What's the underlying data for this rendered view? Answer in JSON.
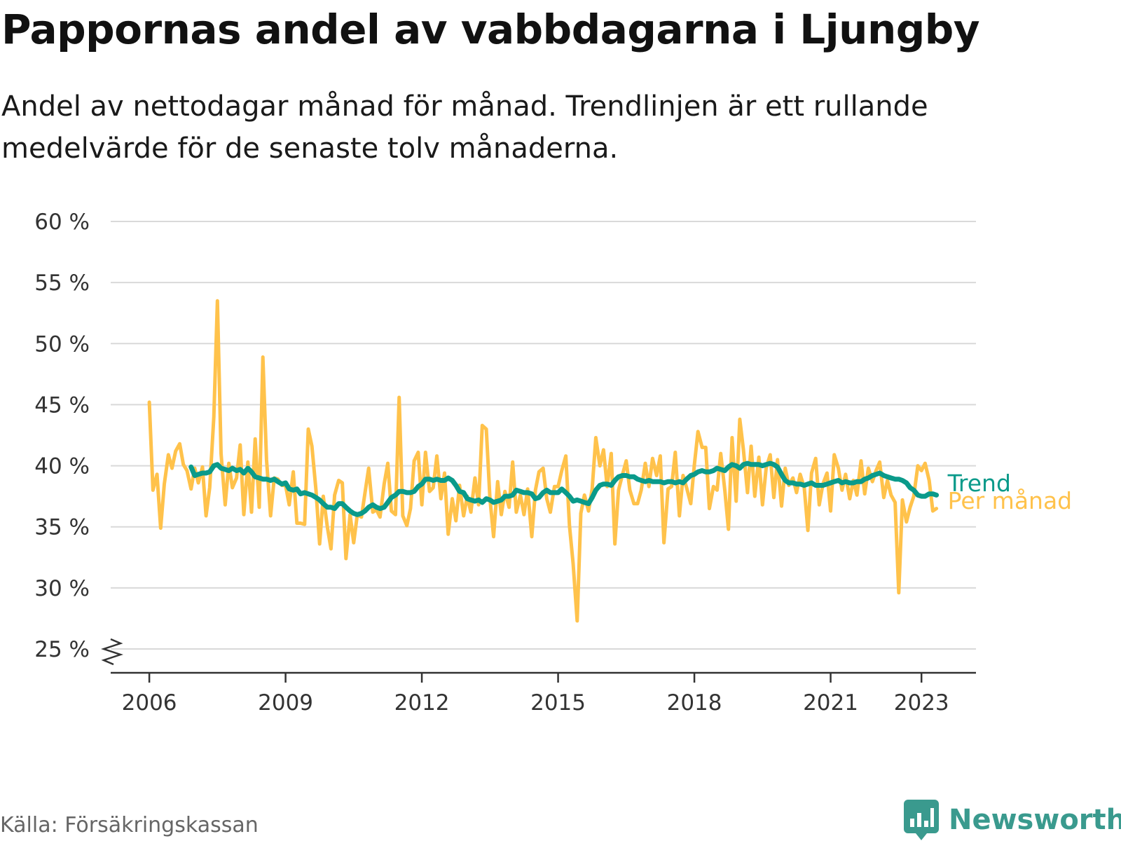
{
  "title": "Pappornas andel av vabbdagarna i Ljungby",
  "subtitle": "Andel av nettodagar månad för månad. Trendlinjen är ett rullande medelvärde för de senaste tolv månaderna.",
  "source": "Källa: Försäkringskassan",
  "brand": {
    "name": "Newsworthy",
    "icon": "newsworthy-logo-icon",
    "color": "#3a9a8e"
  },
  "chart_data": {
    "type": "line",
    "title": "Pappornas andel av vabbdagarna i Ljungby",
    "subtitle": "Andel av nettodagar månad för månad. Trendlinjen är ett rullande medelvärde för de senaste tolv månaderna.",
    "xlabel": "",
    "ylabel": "",
    "ylim": [
      25,
      60
    ],
    "xlim": [
      2005.15,
      2024.2
    ],
    "y_axis_break": true,
    "grid": true,
    "legend": "inline-right",
    "y_ticks": [
      {
        "value": 25,
        "label": "25 %"
      },
      {
        "value": 30,
        "label": "30 %"
      },
      {
        "value": 35,
        "label": "35 %"
      },
      {
        "value": 40,
        "label": "40 %"
      },
      {
        "value": 45,
        "label": "45 %"
      },
      {
        "value": 50,
        "label": "50 %"
      },
      {
        "value": 55,
        "label": "55 %"
      },
      {
        "value": 60,
        "label": "60 %"
      }
    ],
    "x_ticks": [
      {
        "value": 2006,
        "label": "2006"
      },
      {
        "value": 2009,
        "label": "2009"
      },
      {
        "value": 2012,
        "label": "2012"
      },
      {
        "value": 2015,
        "label": "2015"
      },
      {
        "value": 2018,
        "label": "2018"
      },
      {
        "value": 2021,
        "label": "2021"
      },
      {
        "value": 2023,
        "label": "2023"
      }
    ],
    "series": [
      {
        "name": "Per månad",
        "color": "#ffc24b",
        "x": [
          2006.0,
          2006.08,
          2006.17,
          2006.25,
          2006.33,
          2006.42,
          2006.5,
          2006.58,
          2006.67,
          2006.75,
          2006.83,
          2006.92,
          2007.0,
          2007.08,
          2007.17,
          2007.25,
          2007.33,
          2007.42,
          2007.5,
          2007.58,
          2007.67,
          2007.75,
          2007.83,
          2007.92,
          2008.0,
          2008.08,
          2008.17,
          2008.25,
          2008.33,
          2008.42,
          2008.5,
          2008.58,
          2008.67,
          2008.75,
          2008.83,
          2008.92,
          2009.0,
          2009.08,
          2009.17,
          2009.25,
          2009.33,
          2009.42,
          2009.5,
          2009.58,
          2009.67,
          2009.75,
          2009.83,
          2009.92,
          2010.0,
          2010.08,
          2010.17,
          2010.25,
          2010.33,
          2010.42,
          2010.5,
          2010.58,
          2010.67,
          2010.75,
          2010.83,
          2010.92,
          2011.0,
          2011.08,
          2011.17,
          2011.25,
          2011.33,
          2011.42,
          2011.5,
          2011.58,
          2011.67,
          2011.75,
          2011.83,
          2011.92,
          2012.0,
          2012.08,
          2012.17,
          2012.25,
          2012.33,
          2012.42,
          2012.5,
          2012.58,
          2012.67,
          2012.75,
          2012.83,
          2012.92,
          2013.0,
          2013.08,
          2013.17,
          2013.25,
          2013.33,
          2013.42,
          2013.5,
          2013.58,
          2013.67,
          2013.75,
          2013.83,
          2013.92,
          2014.0,
          2014.08,
          2014.17,
          2014.25,
          2014.33,
          2014.42,
          2014.5,
          2014.58,
          2014.67,
          2014.75,
          2014.83,
          2014.92,
          2015.0,
          2015.08,
          2015.17,
          2015.25,
          2015.33,
          2015.42,
          2015.5,
          2015.58,
          2015.67,
          2015.75,
          2015.83,
          2015.92,
          2016.0,
          2016.08,
          2016.17,
          2016.25,
          2016.33,
          2016.42,
          2016.5,
          2016.58,
          2016.67,
          2016.75,
          2016.83,
          2016.92,
          2017.0,
          2017.08,
          2017.17,
          2017.25,
          2017.33,
          2017.42,
          2017.5,
          2017.58,
          2017.67,
          2017.75,
          2017.83,
          2017.92,
          2018.0,
          2018.08,
          2018.17,
          2018.25,
          2018.33,
          2018.42,
          2018.5,
          2018.58,
          2018.67,
          2018.75,
          2018.83,
          2018.92,
          2019.0,
          2019.08,
          2019.17,
          2019.25,
          2019.33,
          2019.42,
          2019.5,
          2019.58,
          2019.67,
          2019.75,
          2019.83,
          2019.92,
          2020.0,
          2020.08,
          2020.17,
          2020.25,
          2020.33,
          2020.42,
          2020.5,
          2020.58,
          2020.67,
          2020.75,
          2020.83,
          2020.92,
          2021.0,
          2021.08,
          2021.17,
          2021.25,
          2021.33,
          2021.42,
          2021.5,
          2021.58,
          2021.67,
          2021.75,
          2021.83,
          2021.92,
          2022.0,
          2022.08,
          2022.17,
          2022.25,
          2022.33,
          2022.42,
          2022.5,
          2022.58,
          2022.67,
          2022.75,
          2022.83,
          2022.92,
          2023.0,
          2023.08,
          2023.17,
          2023.25,
          2023.33
        ],
        "values": [
          45.2,
          38.0,
          39.3,
          34.9,
          38.5,
          40.9,
          39.8,
          41.2,
          41.8,
          40.1,
          39.6,
          38.1,
          39.8,
          38.6,
          39.9,
          35.9,
          38.2,
          44.0,
          53.5,
          41.0,
          36.8,
          40.2,
          38.2,
          39.0,
          41.7,
          36.0,
          40.3,
          36.2,
          42.2,
          36.6,
          48.9,
          40.5,
          35.9,
          39.0,
          38.9,
          38.4,
          38.4,
          36.8,
          39.5,
          35.3,
          35.3,
          35.2,
          43.0,
          41.6,
          38.0,
          33.6,
          37.5,
          35.0,
          33.2,
          37.6,
          38.8,
          38.6,
          32.4,
          36.0,
          33.7,
          36.0,
          35.8,
          37.8,
          39.8,
          36.2,
          36.4,
          35.8,
          38.5,
          40.2,
          36.3,
          36.0,
          45.6,
          35.9,
          35.1,
          36.5,
          40.4,
          41.1,
          36.8,
          41.1,
          37.9,
          38.2,
          40.8,
          37.3,
          39.4,
          34.4,
          37.3,
          35.5,
          38.4,
          35.9,
          37.5,
          36.2,
          39.0,
          36.8,
          43.3,
          43.0,
          37.3,
          34.2,
          38.7,
          36.0,
          37.9,
          36.6,
          40.3,
          36.2,
          37.6,
          36.0,
          38.1,
          34.2,
          38.0,
          39.5,
          39.8,
          37.3,
          36.2,
          38.3,
          38.3,
          39.6,
          40.8,
          35.1,
          32.0,
          27.3,
          36.1,
          37.6,
          36.3,
          38.1,
          42.3,
          40.0,
          41.3,
          38.3,
          41.0,
          33.6,
          38.0,
          39.3,
          40.4,
          38.0,
          36.9,
          36.9,
          38.0,
          40.2,
          38.3,
          40.6,
          39.2,
          40.8,
          33.7,
          38.1,
          38.3,
          41.1,
          35.9,
          39.2,
          38.2,
          36.9,
          40.1,
          42.8,
          41.5,
          41.5,
          36.5,
          38.3,
          38.0,
          41.0,
          38.0,
          34.8,
          42.3,
          37.1,
          43.8,
          41.3,
          37.8,
          41.6,
          37.5,
          40.7,
          36.8,
          39.8,
          40.9,
          37.4,
          40.5,
          36.7,
          39.8,
          38.4,
          39.0,
          37.8,
          39.3,
          38.2,
          34.7,
          39.4,
          40.6,
          36.8,
          38.5,
          39.4,
          36.3,
          40.9,
          39.8,
          38.0,
          39.3,
          37.3,
          38.8,
          37.6,
          40.4,
          37.7,
          39.8,
          38.7,
          39.6,
          40.3,
          37.4,
          38.8,
          37.6,
          37.0,
          29.6,
          37.2,
          35.4,
          36.6,
          37.5,
          40.0,
          39.6,
          40.2,
          38.8,
          36.3,
          36.5
        ]
      },
      {
        "name": "Trend",
        "color": "#0a9a8a",
        "x": [
          2006.92,
          2007.0,
          2007.08,
          2007.17,
          2007.25,
          2007.33,
          2007.42,
          2007.5,
          2007.58,
          2007.67,
          2007.75,
          2007.83,
          2007.92,
          2008.0,
          2008.08,
          2008.17,
          2008.25,
          2008.33,
          2008.42,
          2008.5,
          2008.58,
          2008.67,
          2008.75,
          2008.83,
          2008.92,
          2009.0,
          2009.08,
          2009.17,
          2009.25,
          2009.33,
          2009.42,
          2009.5,
          2009.58,
          2009.67,
          2009.75,
          2009.83,
          2009.92,
          2010.0,
          2010.08,
          2010.17,
          2010.25,
          2010.33,
          2010.42,
          2010.5,
          2010.58,
          2010.67,
          2010.75,
          2010.83,
          2010.92,
          2011.0,
          2011.08,
          2011.17,
          2011.25,
          2011.33,
          2011.42,
          2011.5,
          2011.58,
          2011.67,
          2011.75,
          2011.83,
          2011.92,
          2012.0,
          2012.08,
          2012.17,
          2012.25,
          2012.33,
          2012.42,
          2012.5,
          2012.58,
          2012.67,
          2012.75,
          2012.83,
          2012.92,
          2013.0,
          2013.08,
          2013.17,
          2013.25,
          2013.33,
          2013.42,
          2013.5,
          2013.58,
          2013.67,
          2013.75,
          2013.83,
          2013.92,
          2014.0,
          2014.08,
          2014.17,
          2014.25,
          2014.33,
          2014.42,
          2014.5,
          2014.58,
          2014.67,
          2014.75,
          2014.83,
          2014.92,
          2015.0,
          2015.08,
          2015.17,
          2015.25,
          2015.33,
          2015.42,
          2015.5,
          2015.58,
          2015.67,
          2015.75,
          2015.83,
          2015.92,
          2016.0,
          2016.08,
          2016.17,
          2016.25,
          2016.33,
          2016.42,
          2016.5,
          2016.58,
          2016.67,
          2016.75,
          2016.83,
          2016.92,
          2017.0,
          2017.08,
          2017.17,
          2017.25,
          2017.33,
          2017.42,
          2017.5,
          2017.58,
          2017.67,
          2017.75,
          2017.83,
          2017.92,
          2018.0,
          2018.08,
          2018.17,
          2018.25,
          2018.33,
          2018.42,
          2018.5,
          2018.58,
          2018.67,
          2018.75,
          2018.83,
          2018.92,
          2019.0,
          2019.08,
          2019.17,
          2019.25,
          2019.33,
          2019.42,
          2019.5,
          2019.58,
          2019.67,
          2019.75,
          2019.83,
          2019.92,
          2020.0,
          2020.08,
          2020.17,
          2020.25,
          2020.33,
          2020.42,
          2020.5,
          2020.58,
          2020.67,
          2020.75,
          2020.83,
          2020.92,
          2021.0,
          2021.08,
          2021.17,
          2021.25,
          2021.33,
          2021.42,
          2021.5,
          2021.58,
          2021.67,
          2021.75,
          2021.83,
          2021.92,
          2022.0,
          2022.08,
          2022.17,
          2022.25,
          2022.33,
          2022.42,
          2022.5,
          2022.58,
          2022.67,
          2022.75,
          2022.83,
          2022.92,
          2023.0,
          2023.08,
          2023.17,
          2023.25,
          2023.33
        ],
        "values": [
          39.9,
          39.2,
          39.3,
          39.4,
          39.4,
          39.5,
          40.0,
          40.1,
          39.8,
          39.7,
          39.6,
          39.8,
          39.6,
          39.7,
          39.4,
          39.8,
          39.5,
          39.1,
          39.0,
          38.9,
          38.9,
          38.8,
          38.9,
          38.7,
          38.5,
          38.6,
          38.1,
          38.0,
          38.1,
          37.7,
          37.8,
          37.7,
          37.6,
          37.4,
          37.2,
          36.9,
          36.6,
          36.6,
          36.5,
          36.9,
          36.9,
          36.6,
          36.3,
          36.1,
          36.0,
          36.1,
          36.3,
          36.6,
          36.8,
          36.6,
          36.5,
          36.6,
          37.0,
          37.4,
          37.6,
          37.9,
          37.9,
          37.8,
          37.8,
          37.9,
          38.3,
          38.5,
          38.9,
          38.9,
          38.8,
          38.9,
          38.8,
          38.8,
          39.0,
          38.8,
          38.4,
          37.9,
          37.8,
          37.3,
          37.2,
          37.1,
          37.2,
          37.0,
          37.3,
          37.2,
          37.0,
          37.1,
          37.2,
          37.5,
          37.5,
          37.6,
          38.0,
          37.9,
          37.8,
          37.8,
          37.7,
          37.3,
          37.4,
          37.8,
          38.0,
          37.8,
          37.8,
          37.8,
          38.1,
          37.8,
          37.5,
          37.1,
          37.2,
          37.1,
          37.0,
          36.9,
          37.4,
          38.0,
          38.4,
          38.5,
          38.5,
          38.4,
          38.8,
          39.1,
          39.2,
          39.2,
          39.1,
          39.1,
          38.9,
          38.8,
          38.7,
          38.8,
          38.7,
          38.7,
          38.7,
          38.6,
          38.7,
          38.7,
          38.6,
          38.7,
          38.6,
          38.9,
          39.2,
          39.3,
          39.5,
          39.6,
          39.5,
          39.5,
          39.6,
          39.8,
          39.7,
          39.6,
          39.9,
          40.1,
          40.0,
          39.8,
          40.1,
          40.2,
          40.1,
          40.1,
          40.1,
          40.0,
          40.1,
          40.2,
          40.1,
          39.9,
          39.3,
          38.8,
          38.6,
          38.6,
          38.5,
          38.5,
          38.4,
          38.5,
          38.6,
          38.4,
          38.4,
          38.4,
          38.5,
          38.6,
          38.7,
          38.8,
          38.6,
          38.7,
          38.6,
          38.6,
          38.7,
          38.7,
          38.9,
          39.0,
          39.2,
          39.3,
          39.4,
          39.2,
          39.1,
          39.0,
          38.9,
          38.9,
          38.8,
          38.6,
          38.2,
          38.0,
          37.6,
          37.5,
          37.5,
          37.7,
          37.7,
          37.6
        ]
      }
    ]
  }
}
